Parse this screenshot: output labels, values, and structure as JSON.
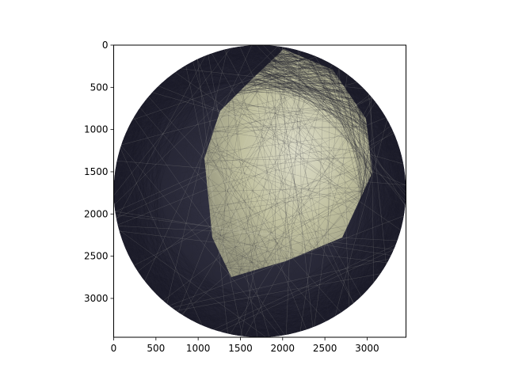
{
  "chart_data": {
    "type": "image",
    "title": "",
    "xlabel": "",
    "ylabel": "",
    "xlim": [
      0,
      3460
    ],
    "ylim": [
      3460,
      0
    ],
    "y_axis_inverted": true,
    "x_ticks": [
      0,
      500,
      1000,
      1500,
      2000,
      2500,
      3000
    ],
    "x_tick_labels": [
      "0",
      "500",
      "1000",
      "1500",
      "2000",
      "2500",
      "3000"
    ],
    "y_ticks": [
      0,
      500,
      1000,
      1500,
      2000,
      2500,
      3000
    ],
    "y_tick_labels": [
      "0",
      "500",
      "1000",
      "1500",
      "2000",
      "2500",
      "3000"
    ],
    "image_content": {
      "shape": "circle",
      "center": [
        1730,
        1730
      ],
      "radius": 1730,
      "description_colors": {
        "dark_threads": "#262638",
        "light_fill": "#c9c9a6",
        "highlight": "#e8e8d4",
        "background": "#ffffff"
      }
    },
    "grid": false,
    "legend": "none"
  }
}
